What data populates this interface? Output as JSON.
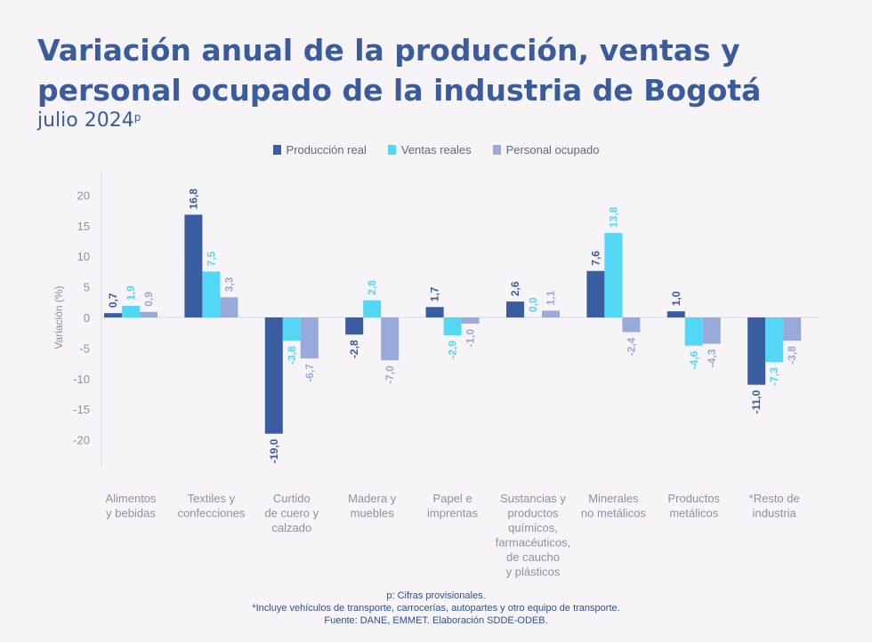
{
  "title_lines": [
    "Variación anual de la producción, ventas y",
    "personal ocupado de la industria de Bogotá"
  ],
  "subtitle": "julio 2024",
  "subtitle_sup": "p",
  "colors": {
    "produccion": "#3a5ca0",
    "ventas": "#54d6f5",
    "personal": "#97aad9",
    "title": "#3a5c9c",
    "axis_text": "#8a93a5"
  },
  "chart_data": {
    "type": "bar",
    "title": "Variación anual de la producción, ventas y personal ocupado de la industria de Bogotá",
    "subtitle": "julio 2024p",
    "ylabel": "Variación (%)",
    "xlabel": "",
    "ylim": [
      -25,
      24
    ],
    "yticks": [
      20,
      15,
      10,
      5,
      0,
      -5,
      -10,
      -15,
      -20
    ],
    "grid": false,
    "legend_position": "top-center",
    "categories": [
      [
        "Alimentos",
        "y bebidas"
      ],
      [
        "Textiles y",
        "confecciones"
      ],
      [
        "Curtido",
        "de cuero y",
        "calzado"
      ],
      [
        "Madera y",
        "muebles"
      ],
      [
        "Papel e",
        "imprentas"
      ],
      [
        "Sustancias y",
        "productos",
        "químicos,",
        "farmacéuticos,",
        "de caucho",
        "y plásticos"
      ],
      [
        "Minerales",
        "no metálicos"
      ],
      [
        "Productos",
        "metálicos"
      ],
      [
        "*Resto de",
        "industria"
      ]
    ],
    "series": [
      {
        "name": "Producción real",
        "key": "produccion",
        "values": [
          0.7,
          16.8,
          -19.0,
          -2.8,
          1.7,
          2.6,
          7.6,
          1.0,
          -11.0
        ]
      },
      {
        "name": "Ventas reales",
        "key": "ventas",
        "values": [
          1.9,
          7.5,
          -3.8,
          2.8,
          -2.9,
          0.0,
          13.8,
          -4.6,
          -7.3
        ]
      },
      {
        "name": "Personal ocupado",
        "key": "personal",
        "values": [
          0.9,
          3.3,
          -6.7,
          -7.0,
          -1.0,
          1.1,
          -2.4,
          -4.3,
          -3.8
        ]
      }
    ],
    "data_labels": [
      [
        "0,7",
        "16,8",
        "-19,0",
        "-2,8",
        "1,7",
        "2,6",
        "7,6",
        "1,0",
        "-11,0"
      ],
      [
        "1,9",
        "7,5",
        "-3,8",
        "2,8",
        "-2,9",
        "0,0",
        "13,8",
        "-4,6",
        "-7,3"
      ],
      [
        "0,9",
        "3,3",
        "-6,7",
        "-7,0",
        "-1,0",
        "1,1",
        "-2,4",
        "-4,3",
        "-3,8"
      ]
    ]
  },
  "footer": {
    "note1": "p: Cifras provisionales.",
    "note2": "*Incluye vehículos de transporte, carrocerías, autopartes y otro equipo de transporte.",
    "source": "Fuente: DANE, EMMET. Elaboración SDDE-ODEB."
  }
}
